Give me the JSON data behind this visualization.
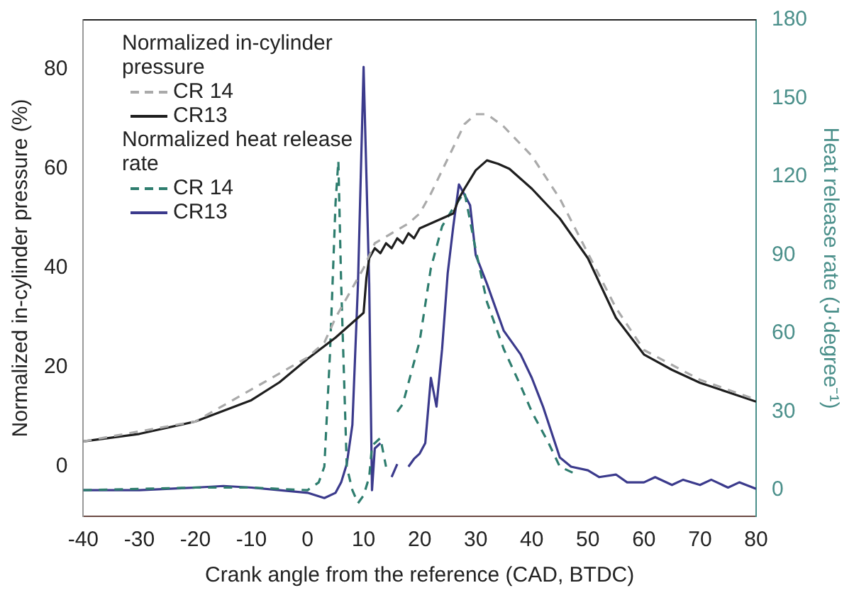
{
  "chart_data": {
    "type": "line",
    "xlabel": "Crank angle from the reference (CAD, BTDC)",
    "ylabel": "Normalized in-cylinder pressure (%)",
    "y2label": "Heat release rate (J·degree⁻¹)",
    "annotations": [
      "Normalized in-cylinder pressure",
      "Normalized heat release rate"
    ],
    "xlim": [
      -40,
      80
    ],
    "xticks": [
      -40,
      -30,
      -20,
      -10,
      0,
      10,
      20,
      30,
      40,
      50,
      60,
      70,
      80
    ],
    "ylim": [
      -10,
      90
    ],
    "yticks": [
      0,
      20,
      40,
      60,
      80
    ],
    "y2lim": [
      -10,
      180
    ],
    "y2ticks": [
      0,
      30,
      60,
      90,
      120,
      150,
      180
    ],
    "grid": false,
    "legend": "top left",
    "marker": "none",
    "series": [
      {
        "name": "CR 14",
        "color": "#aaaaaa",
        "line_style": "dashed",
        "axis": "y",
        "x": [
          -40,
          -20,
          0,
          3,
          5,
          7,
          9,
          10,
          12,
          15,
          18,
          20,
          22,
          25,
          28,
          30,
          32,
          35,
          40,
          45,
          50,
          55,
          60,
          70,
          80
        ],
        "values": [
          5.1,
          9.1,
          22,
          25,
          30,
          34,
          38,
          40,
          45,
          47,
          49,
          51,
          55,
          62,
          69,
          71,
          71,
          68.5,
          62.6,
          54,
          43,
          32,
          23.5,
          17.5,
          13.5
        ]
      },
      {
        "name": "CR13",
        "color": "#1e1e1e",
        "line_style": "solid",
        "axis": "y",
        "x": [
          -40,
          -30,
          -20,
          -10,
          -5,
          0,
          5,
          8,
          10,
          10.5,
          11,
          12,
          13,
          14,
          15,
          16,
          17,
          18,
          19,
          20,
          22,
          24,
          26,
          27,
          28,
          30,
          32,
          34,
          36,
          38,
          40,
          45,
          50,
          55,
          60,
          65,
          70,
          75,
          80
        ],
        "values": [
          5.1,
          6.6,
          9.1,
          13.4,
          17,
          21.7,
          26,
          29,
          31,
          38,
          42,
          44,
          43,
          45,
          44,
          46,
          45,
          47,
          46,
          48,
          49,
          50,
          51,
          54,
          56,
          59.7,
          61.7,
          61,
          60,
          58,
          56,
          50,
          42,
          30,
          22.6,
          19.5,
          16.9,
          15,
          13.1
        ]
      },
      {
        "name": "CR 14",
        "color": "#2e7d6e",
        "line_style": "dashed",
        "axis": "y2",
        "x": [
          -40,
          -20,
          -10,
          0,
          2,
          3,
          4,
          5,
          5.5,
          6,
          7,
          8,
          9,
          10,
          11,
          11.5,
          13,
          14,
          15,
          16,
          17,
          18,
          20,
          22,
          24,
          26,
          28,
          30,
          32,
          35,
          38,
          40,
          43,
          45,
          47,
          48
        ],
        "values": [
          0,
          1,
          1,
          0,
          3,
          9,
          52,
          110,
          126,
          79,
          9,
          0,
          -5,
          -2,
          5,
          17,
          20,
          9,
          null,
          30,
          33,
          41,
          57,
          85,
          101,
          108,
          114,
          92,
          72,
          54,
          40,
          30,
          18,
          9,
          7,
          6
        ]
      },
      {
        "name": "CR13",
        "color": "#3b3a8c",
        "line_style": "solid",
        "axis": "y2",
        "x": [
          -40,
          -30,
          -20,
          -15,
          -10,
          -5,
          0,
          3,
          5,
          6,
          7,
          8,
          9,
          10,
          11,
          11.5,
          12,
          13,
          14,
          15,
          16,
          17,
          18,
          19,
          20,
          21,
          22,
          23,
          24,
          25,
          26,
          27,
          28,
          29,
          30,
          32,
          35,
          38,
          40,
          42,
          45,
          47,
          50,
          52,
          55,
          57,
          60,
          62,
          65,
          67,
          70,
          72,
          75,
          77,
          80
        ],
        "values": [
          0,
          0,
          1,
          1.6,
          1,
          0,
          -1,
          -3,
          -1,
          3,
          10,
          25,
          79,
          162,
          79,
          0,
          16,
          18,
          null,
          5,
          10,
          null,
          9,
          12,
          14,
          18,
          43,
          32,
          54,
          83,
          101,
          117,
          113,
          109,
          90,
          79,
          61,
          52,
          43,
          32,
          12.5,
          9,
          7.6,
          5,
          6,
          3,
          3,
          5,
          2,
          4,
          2,
          4,
          1,
          3,
          0.5
        ]
      }
    ]
  }
}
